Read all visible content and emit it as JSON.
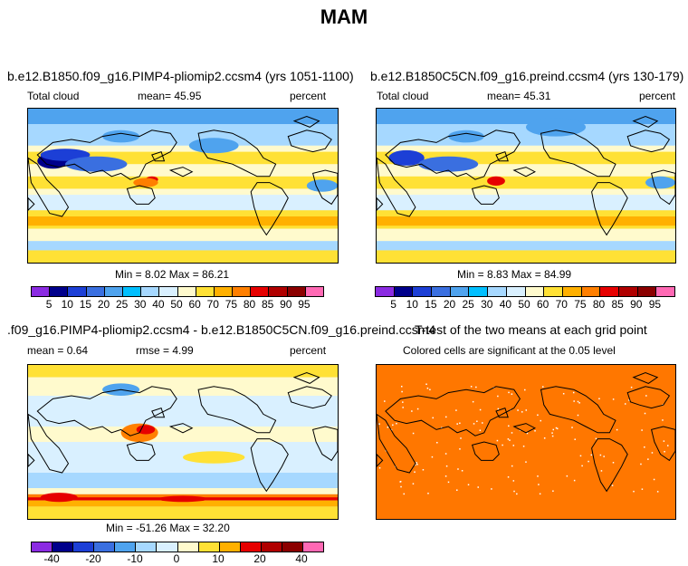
{
  "page_title": "MAM",
  "panels": {
    "top_left": {
      "title": "b.e12.B1850.f09_g16.PIMP4-pliomip2.ccsm4 (yrs 1051-1100)",
      "left_label": "Total cloud",
      "center_label": "mean=   45.95",
      "right_label": "percent",
      "stats": "Min =    8.02  Max =   86.21"
    },
    "top_right": {
      "title": "b.e12.B1850C5CN.f09_g16.preind.ccsm4 (yrs 130-179)",
      "left_label": "Total cloud",
      "center_label": "mean=   45.31",
      "right_label": "percent",
      "stats": "Min =    8.83  Max =   84.99"
    },
    "bottom_left": {
      "title": ".f09_g16.PIMP4-pliomip2.ccsm4 - b.e12.B1850C5CN.f09_g16.preind.ccsm4",
      "left_label": "mean =    0.64",
      "center_label": "rmse =    4.99",
      "right_label": "percent",
      "stats": "Min = -51.26  Max =   32.20"
    },
    "bottom_right": {
      "title": "T-test of the two means at each grid point",
      "subtitle": "Colored cells are significant at the 0.05 level"
    }
  },
  "colorbar_abs": {
    "ticks": [
      "5",
      "10",
      "15",
      "20",
      "25",
      "30",
      "40",
      "50",
      "60",
      "70",
      "75",
      "80",
      "85",
      "90",
      "95"
    ],
    "colors": [
      "#8b2be2",
      "#00008b",
      "#1c3fd6",
      "#3a6fe0",
      "#4fa3ee",
      "#00bfff",
      "#a6d8ff",
      "#d9f0ff",
      "#fffacd",
      "#ffe135",
      "#ffb000",
      "#ff7f00",
      "#e60000",
      "#b00000",
      "#8b0000",
      "#ff69b4"
    ]
  },
  "colorbar_diff": {
    "ticks": [
      "-40",
      "-20",
      "-10",
      "0",
      "10",
      "20",
      "40"
    ],
    "colors": [
      "#8b2be2",
      "#00008b",
      "#1c3fd6",
      "#3a6fe0",
      "#4fa3ee",
      "#a6d8ff",
      "#d9f0ff",
      "#fffacd",
      "#ffe135",
      "#ffb000",
      "#e60000",
      "#b00000",
      "#8b0000",
      "#ff69b4"
    ]
  },
  "colors": {
    "ocean_base": "#d9f0ff",
    "ttest_fill": "#ff7700",
    "coast": "#000000"
  }
}
